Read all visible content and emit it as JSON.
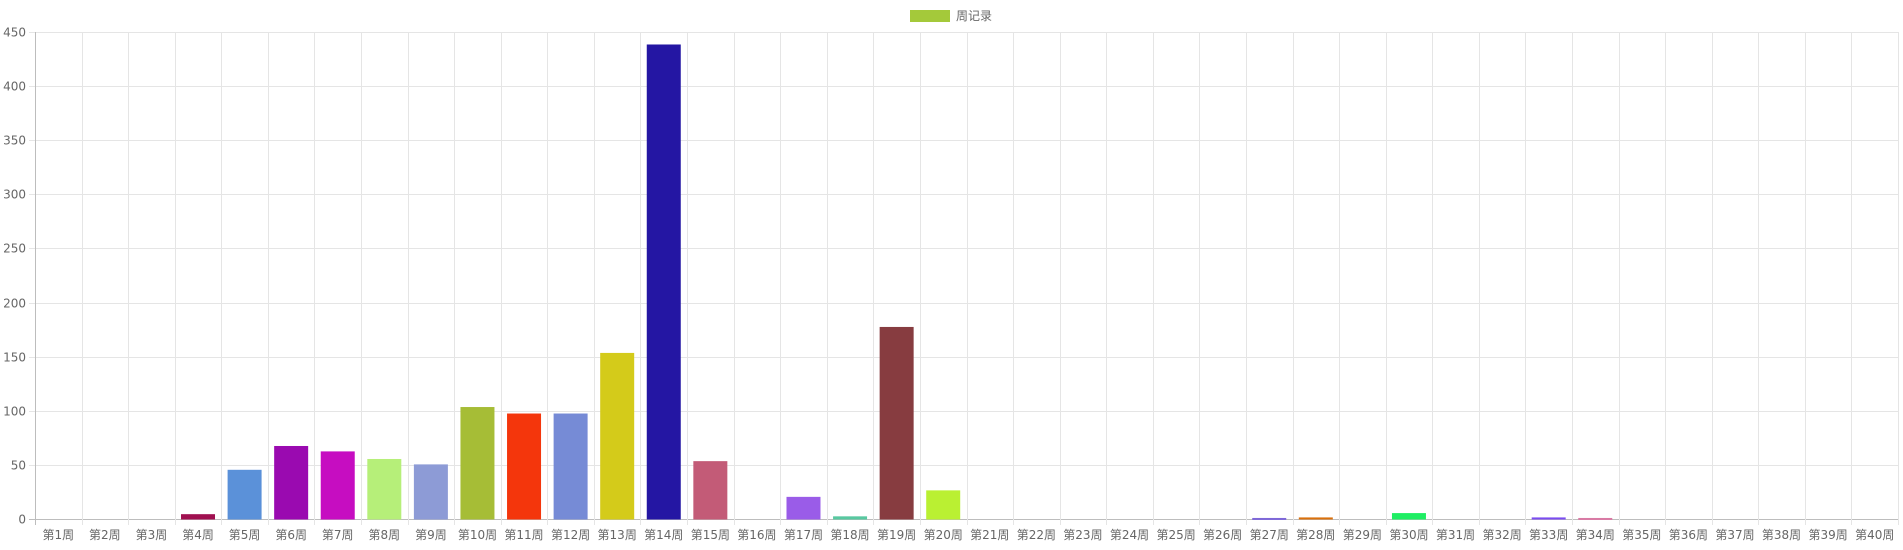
{
  "chart_data": {
    "type": "bar",
    "title": "",
    "xlabel": "",
    "ylabel": "",
    "ylim": [
      0,
      450
    ],
    "y_ticks": [
      0,
      50,
      100,
      150,
      200,
      250,
      300,
      350,
      400,
      450
    ],
    "grid": true,
    "legend_position": "top-center",
    "categories": [
      "第1周",
      "第2周",
      "第3周",
      "第4周",
      "第5周",
      "第6周",
      "第7周",
      "第8周",
      "第9周",
      "第10周",
      "第11周",
      "第12周",
      "第13周",
      "第14周",
      "第15周",
      "第16周",
      "第17周",
      "第18周",
      "第19周",
      "第20周",
      "第21周",
      "第22周",
      "第23周",
      "第24周",
      "第25周",
      "第26周",
      "第27周",
      "第28周",
      "第29周",
      "第30周",
      "第31周",
      "第32周",
      "第33周",
      "第34周",
      "第35周",
      "第36周",
      "第37周",
      "第38周",
      "第39周",
      "第40周"
    ],
    "series": [
      {
        "name": "周记录",
        "legend_color": "#a4c93a",
        "values": [
          0,
          0,
          0,
          4,
          45,
          67,
          62,
          55,
          50,
          103,
          97,
          97,
          153,
          438,
          53,
          0,
          20,
          2,
          177,
          26,
          0,
          0,
          0,
          0,
          0,
          0,
          0.5,
          1,
          0,
          5,
          0,
          0,
          1,
          0.5,
          0,
          0,
          0,
          0,
          0,
          0
        ],
        "colors": [
          "#cccccc",
          "#cccccc",
          "#cccccc",
          "#a01050",
          "#5b91d9",
          "#9a0ab0",
          "#c60dc1",
          "#b6ef79",
          "#8d9bd6",
          "#a6bd36",
          "#f4360c",
          "#768bd6",
          "#d4cb1a",
          "#2416a3",
          "#c35b77",
          "#cccccc",
          "#9a5ce8",
          "#58c8a0",
          "#873c40",
          "#baf032",
          "#cccccc",
          "#cccccc",
          "#cccccc",
          "#cccccc",
          "#cccccc",
          "#cccccc",
          "#7e68d8",
          "#d9700d",
          "#cccccc",
          "#1fee63",
          "#cccccc",
          "#cccccc",
          "#7a4cf0",
          "#d97aa4",
          "#cccccc",
          "#cccccc",
          "#cccccc",
          "#cccccc",
          "#cccccc",
          "#cccccc"
        ]
      }
    ]
  }
}
